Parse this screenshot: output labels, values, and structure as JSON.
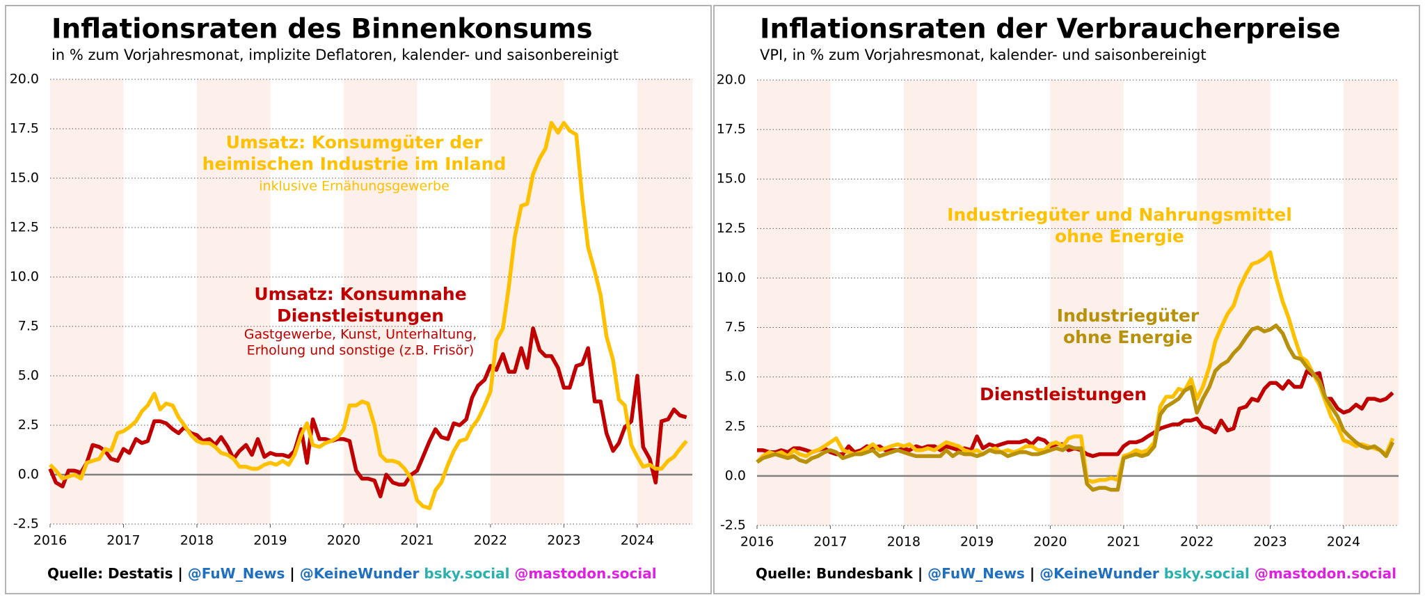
{
  "chart_data": [
    {
      "type": "line",
      "title": "Inflationsraten des Binnenkonsums",
      "subtitle": "in % zum Vorjahresmonat, implizite Deflatoren, kalender- und saisonbereinigt",
      "x": [
        2016,
        2016.08,
        2016.17,
        2016.25,
        2016.33,
        2016.42,
        2016.5,
        2016.58,
        2016.67,
        2016.75,
        2016.83,
        2016.92,
        2017,
        2017.08,
        2017.17,
        2017.25,
        2017.33,
        2017.42,
        2017.5,
        2017.58,
        2017.67,
        2017.75,
        2017.83,
        2017.92,
        2018,
        2018.08,
        2018.17,
        2018.25,
        2018.33,
        2018.42,
        2018.5,
        2018.58,
        2018.67,
        2018.75,
        2018.83,
        2018.92,
        2019,
        2019.08,
        2019.17,
        2019.25,
        2019.33,
        2019.42,
        2019.5,
        2019.58,
        2019.67,
        2019.75,
        2019.83,
        2019.92,
        2020,
        2020.08,
        2020.17,
        2020.25,
        2020.33,
        2020.42,
        2020.5,
        2020.58,
        2020.67,
        2020.75,
        2020.83,
        2020.92,
        2021,
        2021.08,
        2021.17,
        2021.25,
        2021.33,
        2021.42,
        2021.5,
        2021.58,
        2021.67,
        2021.75,
        2021.83,
        2021.92,
        2022,
        2022.08,
        2022.17,
        2022.25,
        2022.33,
        2022.42,
        2022.5,
        2022.58,
        2022.67,
        2022.75,
        2022.83,
        2022.92,
        2023,
        2023.08,
        2023.17,
        2023.25,
        2023.33,
        2023.42,
        2023.5,
        2023.58,
        2023.67,
        2023.75,
        2023.83,
        2023.92,
        2024,
        2024.08,
        2024.17,
        2024.25,
        2024.33,
        2024.42,
        2024.5,
        2024.58,
        2024.67
      ],
      "xlim": [
        2016,
        2024.75
      ],
      "xticks": [
        2016,
        2017,
        2018,
        2019,
        2020,
        2021,
        2022,
        2023,
        2024
      ],
      "ylim": [
        -2.5,
        20
      ],
      "yticks": [
        -2.5,
        {
          "value": 0,
          "label": "0.0"
        },
        2.5,
        {
          "value": 5,
          "label": "5.0"
        },
        7.5,
        {
          "value": 10,
          "label": "10.0"
        },
        12.5,
        {
          "value": 15,
          "label": "15.0"
        },
        17.5,
        {
          "value": 20,
          "label": "20.0"
        }
      ],
      "grid": true,
      "series": [
        {
          "color": "#c00000",
          "values": [
            0.3,
            -0.4,
            -0.6,
            0.2,
            0.2,
            0.1,
            0.6,
            1.5,
            1.4,
            1.2,
            0.8,
            0.7,
            1.3,
            1.1,
            1.8,
            1.6,
            1.7,
            2.7,
            2.7,
            2.6,
            2.3,
            2.1,
            2.4,
            2.1,
            2.0,
            1.7,
            1.8,
            1.5,
            1.9,
            1.4,
            0.8,
            1.2,
            1.5,
            1.0,
            1.8,
            0.9,
            1.1,
            1.0,
            1.0,
            0.9,
            1.2,
            2.3,
            0.6,
            2.8,
            1.8,
            1.8,
            1.7,
            1.8,
            1.8,
            1.7,
            0.2,
            -0.2,
            -0.2,
            -0.3,
            -1.1,
            0.0,
            -0.4,
            -0.5,
            -0.5,
            0.0,
            0.2,
            0.9,
            1.7,
            2.3,
            1.9,
            1.8,
            2.6,
            2.5,
            2.8,
            3.9,
            4.5,
            4.8,
            5.5,
            5.3,
            6.1,
            5.2,
            5.2,
            6.4,
            5.4,
            7.4,
            6.3,
            6.0,
            6.0,
            5.4,
            4.4,
            4.4,
            5.5,
            5.6,
            6.4,
            3.7,
            3.7,
            2.1,
            1.2,
            1.6,
            2.4,
            2.7,
            5.0,
            1.4,
            0.8,
            -0.4,
            2.7,
            2.8,
            3.3,
            3.0,
            2.9
          ]
        },
        {
          "color": "#ffc000",
          "values": [
            0.5,
            0.2,
            -0.2,
            -0.1,
            0.0,
            -0.2,
            0.6,
            0.7,
            0.8,
            1.3,
            1.2,
            2.1,
            2.2,
            2.4,
            2.7,
            3.2,
            3.5,
            4.1,
            3.3,
            3.6,
            3.5,
            2.9,
            2.5,
            2.0,
            1.7,
            1.6,
            1.6,
            1.4,
            1.1,
            1.0,
            0.8,
            0.4,
            0.4,
            0.3,
            0.3,
            0.5,
            0.6,
            0.5,
            0.7,
            0.5,
            1.0,
            2.0,
            2.6,
            1.5,
            1.4,
            1.6,
            1.7,
            1.9,
            2.3,
            3.5,
            3.5,
            3.7,
            3.6,
            2.5,
            1.0,
            0.7,
            0.7,
            0.6,
            0.3,
            -0.2,
            -1.3,
            -1.6,
            -1.7,
            -0.8,
            -0.4,
            0.5,
            1.2,
            1.7,
            1.8,
            2.4,
            2.8,
            3.5,
            4.2,
            6.8,
            7.4,
            9.5,
            12.0,
            13.6,
            13.7,
            15.2,
            16.0,
            16.5,
            17.8,
            17.3,
            17.8,
            17.4,
            17.2,
            14.0,
            11.5,
            10.3,
            9.1,
            7.0,
            5.8,
            3.8,
            3.5,
            1.5,
            0.9,
            0.4,
            0.5,
            0.3,
            0.3,
            0.7,
            0.9,
            1.3,
            1.7
          ]
        }
      ],
      "annotations": [
        {
          "color": "#ffc000",
          "lines": [
            "Umsatz: Konsumgüter der",
            "heimischen Industrie im Inland"
          ],
          "sub": [
            "inklusive Ernähungsgewerbe"
          ]
        },
        {
          "color": "#c00000",
          "lines": [
            "Umsatz: Konsumnahe",
            "Dienstleistungen"
          ],
          "sub": [
            "Gastgewerbe, Kunst, Unterhaltung,",
            "Erholung und sonstige (z.B. Frisör)"
          ]
        }
      ],
      "source": [
        {
          "text": "Quelle: Destatis |",
          "color": "#000000"
        },
        {
          "text": "@FuW_News",
          "color": "#1f6fc0"
        },
        {
          "text": "|",
          "color": "#000000"
        },
        {
          "text": "@KeineWunder",
          "color": "#1f6fc0"
        },
        {
          "text": "bsky.social",
          "color": "#2bb0b0"
        },
        {
          "text": "@mastodon.social",
          "color": "#e020e0"
        }
      ]
    },
    {
      "type": "line",
      "title": "Inflationsraten der Verbraucherpreise",
      "subtitle": "VPI, in % zum Vorjahresmonat, kalender- und saisonbereinigt",
      "x": [
        2016,
        2016.08,
        2016.17,
        2016.25,
        2016.33,
        2016.42,
        2016.5,
        2016.58,
        2016.67,
        2016.75,
        2016.83,
        2016.92,
        2017,
        2017.08,
        2017.17,
        2017.25,
        2017.33,
        2017.42,
        2017.5,
        2017.58,
        2017.67,
        2017.75,
        2017.83,
        2017.92,
        2018,
        2018.08,
        2018.17,
        2018.25,
        2018.33,
        2018.42,
        2018.5,
        2018.58,
        2018.67,
        2018.75,
        2018.83,
        2018.92,
        2019,
        2019.08,
        2019.17,
        2019.25,
        2019.33,
        2019.42,
        2019.5,
        2019.58,
        2019.67,
        2019.75,
        2019.83,
        2019.92,
        2020,
        2020.08,
        2020.17,
        2020.25,
        2020.33,
        2020.42,
        2020.5,
        2020.58,
        2020.67,
        2020.75,
        2020.83,
        2020.92,
        2021,
        2021.08,
        2021.17,
        2021.25,
        2021.33,
        2021.42,
        2021.5,
        2021.58,
        2021.67,
        2021.75,
        2021.83,
        2021.92,
        2022,
        2022.08,
        2022.17,
        2022.25,
        2022.33,
        2022.42,
        2022.5,
        2022.58,
        2022.67,
        2022.75,
        2022.83,
        2022.92,
        2023,
        2023.08,
        2023.17,
        2023.25,
        2023.33,
        2023.42,
        2023.5,
        2023.58,
        2023.67,
        2023.75,
        2023.83,
        2023.92,
        2024,
        2024.08,
        2024.17,
        2024.25,
        2024.33,
        2024.42,
        2024.5,
        2024.58,
        2024.67
      ],
      "xlim": [
        2016,
        2024.75
      ],
      "xticks": [
        2016,
        2017,
        2018,
        2019,
        2020,
        2021,
        2022,
        2023,
        2024
      ],
      "ylim": [
        -2.5,
        20
      ],
      "yticks": [
        -2.5,
        {
          "value": 0,
          "label": "0.0"
        },
        2.5,
        {
          "value": 5,
          "label": "5.0"
        },
        7.5,
        {
          "value": 10,
          "label": "10.0"
        },
        12.5,
        {
          "value": 15,
          "label": "15.0"
        },
        17.5,
        {
          "value": 20,
          "label": "20.0"
        }
      ],
      "grid": true,
      "series": [
        {
          "color": "#c00000",
          "values": [
            1.3,
            1.3,
            1.2,
            1.2,
            1.3,
            1.2,
            1.4,
            1.4,
            1.3,
            1.2,
            1.3,
            1.4,
            1.2,
            1.1,
            1.1,
            1.5,
            1.2,
            1.3,
            1.5,
            1.4,
            1.5,
            1.3,
            1.3,
            1.3,
            1.4,
            1.3,
            1.5,
            1.4,
            1.5,
            1.5,
            1.3,
            1.5,
            1.4,
            1.3,
            1.4,
            1.3,
            2.0,
            1.4,
            1.6,
            1.5,
            1.6,
            1.7,
            1.7,
            1.7,
            1.8,
            1.6,
            1.9,
            1.8,
            1.5,
            1.6,
            1.6,
            1.3,
            1.4,
            1.3,
            1.1,
            1.0,
            1.1,
            1.1,
            1.1,
            1.1,
            1.5,
            1.7,
            1.7,
            1.8,
            2.0,
            2.2,
            2.4,
            2.5,
            2.6,
            2.6,
            2.8,
            2.8,
            2.9,
            2.5,
            2.4,
            2.2,
            2.8,
            2.3,
            2.4,
            3.4,
            3.5,
            3.9,
            3.8,
            4.4,
            4.7,
            4.7,
            4.4,
            4.8,
            4.5,
            4.5,
            5.3,
            5.1,
            5.2,
            3.9,
            3.9,
            3.4,
            3.2,
            3.3,
            3.6,
            3.4,
            3.9,
            3.9,
            3.8,
            3.9,
            4.2
          ]
        },
        {
          "color": "#ffc000",
          "values": [
            0.7,
            1.0,
            1.2,
            1.1,
            1.2,
            1.0,
            1.3,
            1.1,
            1.0,
            1.2,
            1.3,
            1.5,
            1.7,
            1.9,
            1.3,
            1.2,
            1.1,
            1.2,
            1.4,
            1.6,
            1.3,
            1.4,
            1.5,
            1.6,
            1.5,
            1.6,
            1.3,
            1.3,
            1.4,
            1.3,
            1.5,
            1.7,
            1.6,
            1.5,
            1.3,
            1.2,
            1.3,
            1.1,
            1.3,
            1.4,
            1.2,
            1.3,
            1.2,
            1.3,
            1.5,
            1.5,
            1.3,
            1.3,
            1.6,
            1.7,
            1.5,
            1.9,
            2.0,
            2.0,
            -0.2,
            -0.3,
            -0.2,
            -0.2,
            -0.1,
            -0.2,
            1.0,
            1.1,
            1.3,
            1.2,
            1.3,
            1.7,
            3.5,
            4.0,
            4.0,
            4.4,
            4.3,
            4.9,
            3.9,
            4.5,
            5.5,
            6.8,
            7.5,
            8.2,
            8.6,
            9.5,
            10.2,
            10.7,
            10.8,
            11.0,
            11.3,
            10.0,
            8.8,
            8.0,
            7.0,
            6.0,
            5.8,
            5.2,
            4.6,
            3.8,
            3.0,
            2.5,
            1.8,
            1.7,
            1.5,
            1.6,
            1.5,
            1.4,
            1.3,
            1.1,
            1.9
          ]
        },
        {
          "color": "#b8900a",
          "values": [
            0.7,
            0.9,
            1.0,
            1.1,
            1.0,
            0.9,
            1.0,
            0.8,
            0.7,
            0.9,
            1.0,
            1.2,
            1.3,
            1.2,
            0.9,
            1.0,
            1.1,
            1.1,
            1.2,
            1.3,
            1.0,
            1.1,
            1.2,
            1.3,
            1.2,
            1.1,
            1.0,
            1.0,
            1.0,
            1.0,
            1.0,
            1.3,
            1.0,
            1.2,
            1.1,
            1.1,
            1.0,
            1.1,
            1.3,
            1.2,
            1.2,
            1.0,
            1.1,
            1.2,
            1.2,
            1.1,
            1.1,
            1.2,
            1.3,
            1.4,
            1.3,
            1.5,
            1.4,
            1.4,
            -0.4,
            -0.7,
            -0.6,
            -0.6,
            -0.7,
            -0.7,
            0.9,
            1.0,
            1.1,
            1.0,
            1.1,
            1.5,
            3.1,
            3.5,
            3.7,
            3.9,
            4.3,
            4.5,
            3.2,
            3.9,
            4.5,
            5.3,
            5.6,
            5.8,
            6.2,
            6.5,
            7.0,
            7.4,
            7.5,
            7.3,
            7.4,
            7.6,
            7.2,
            6.5,
            6.0,
            5.9,
            5.5,
            5.2,
            4.8,
            4.0,
            3.5,
            3.0,
            2.3,
            2.0,
            1.7,
            1.5,
            1.4,
            1.5,
            1.3,
            1.0,
            1.7
          ]
        }
      ],
      "annotations": [
        {
          "color": "#ffc000",
          "lines": [
            "Industriegüter und Nahrungsmittel",
            "ohne Energie"
          ]
        },
        {
          "color": "#b8900a",
          "lines": [
            "Industriegüter",
            "ohne Energie"
          ]
        },
        {
          "color": "#c00000",
          "lines": [
            "Dienstleistungen"
          ]
        }
      ],
      "source": [
        {
          "text": "Quelle: Bundesbank |",
          "color": "#000000"
        },
        {
          "text": "@FuW_News",
          "color": "#1f6fc0"
        },
        {
          "text": "|",
          "color": "#000000"
        },
        {
          "text": "@KeineWunder",
          "color": "#1f6fc0"
        },
        {
          "text": "bsky.social",
          "color": "#2bb0b0"
        },
        {
          "text": "@mastodon.social",
          "color": "#e020e0"
        }
      ]
    }
  ]
}
